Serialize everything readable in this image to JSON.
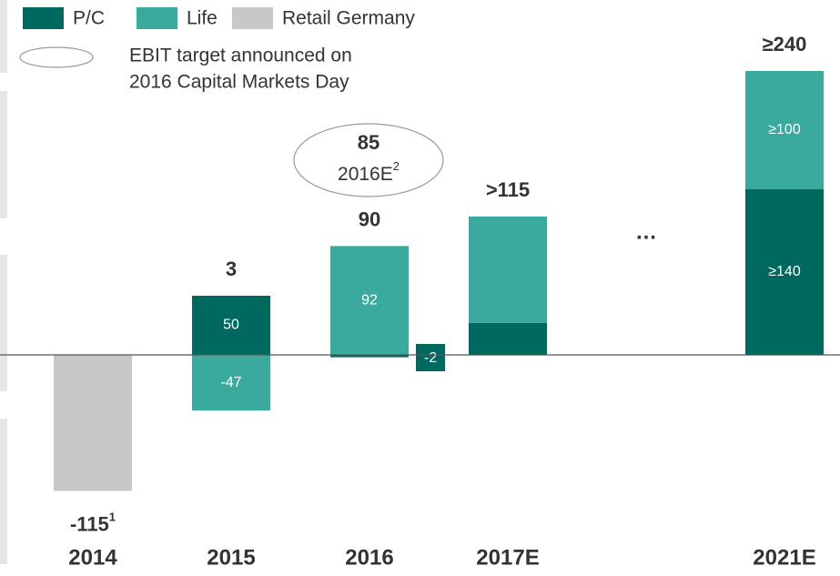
{
  "chart_data": {
    "type": "stacked-bar",
    "categories": [
      "2014",
      "2015",
      "2016",
      "2017E",
      null,
      "2021E"
    ],
    "series": [
      {
        "name": "P/C",
        "color": "#00695f",
        "values": [
          null,
          50,
          -2,
          27,
          null,
          140
        ],
        "value_labels": [
          null,
          "50",
          "-2",
          null,
          null,
          "≥140"
        ]
      },
      {
        "name": "Life",
        "color": "#3aaa9f",
        "values": [
          null,
          -47,
          92,
          90,
          null,
          100
        ],
        "value_labels": [
          null,
          "-47",
          "92",
          null,
          null,
          "≥100"
        ]
      },
      {
        "name": "Retail Germany",
        "color": "#c8c8c8",
        "values": [
          -115,
          null,
          null,
          null,
          null,
          null
        ]
      }
    ],
    "totals": {
      "values": [
        -115,
        3,
        90,
        116,
        null,
        240
      ],
      "value_labels": [
        "-115",
        "3",
        "90",
        ">115",
        null,
        "≥240"
      ],
      "footnotes": [
        "1",
        null,
        null,
        null,
        null,
        null
      ]
    },
    "gap_label": "…",
    "target": {
      "legend": [
        "EBIT target announced on",
        "2016 Capital Markets Day"
      ],
      "value": 85,
      "label": "2016E",
      "footnote": "2"
    },
    "ylim": [
      -130,
      260
    ]
  }
}
